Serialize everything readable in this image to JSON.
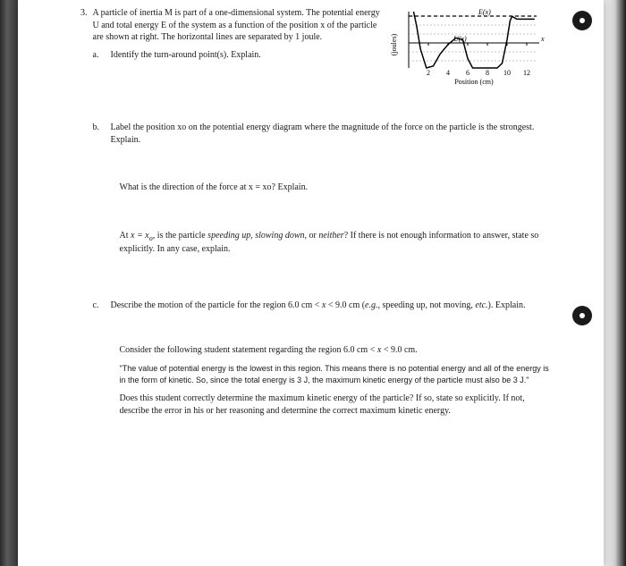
{
  "question": {
    "number": "3.",
    "intro": "A particle of inertia M is part of a one-dimensional system. The potential energy U and total energy E of the system as a function of the position x of the particle are shown at right. The horizontal lines are separated by 1 joule.",
    "parts": {
      "a": {
        "letter": "a.",
        "text": "Identify the turn-around point(s). Explain."
      },
      "b": {
        "letter": "b.",
        "text": "Label the position xo on the potential energy diagram where the magnitude of the force on the particle is the strongest. Explain.",
        "sub1": "What is the direction of the force at x = xo? Explain.",
        "sub2": "At x = xo, is the particle speeding up, slowing down, or neither? If there is not enough information to answer, state so explicitly. In any case, explain."
      },
      "c": {
        "letter": "c.",
        "text": "Describe the motion of the particle for the region 6.0 cm < x < 9.0 cm (e.g., speeding up, not moving, etc.). Explain.",
        "sub1": "Consider the following student statement regarding the region 6.0 cm < x < 9.0 cm.",
        "quote": "\"The value of potential energy is the lowest in this region. This means there is no potential energy and all of the energy is in the form of kinetic. So, since the total energy is 3 J, the maximum kinetic energy of the particle must also be 3 J.\"",
        "sub2": "Does this student correctly determine the maximum kinetic energy of the particle? If so, state so explicitly. If not, describe the error in his or her reasoning and determine the correct maximum kinetic energy."
      }
    }
  },
  "graph": {
    "ylabel": "(joules)",
    "xlabel": "Position (cm)",
    "e_label": "E(x)",
    "u_label": "U(x)",
    "x_axis_label": "x",
    "xticks": [
      "2",
      "4",
      "6",
      "8",
      "10",
      "12"
    ],
    "xlim": [
      0,
      13
    ],
    "ylim": [
      -2,
      4
    ],
    "e_value": 3,
    "u_curve": [
      [
        0.5,
        4
      ],
      [
        0.8,
        2.5
      ],
      [
        1.2,
        0
      ],
      [
        1.8,
        -2
      ],
      [
        2.5,
        -1.8
      ],
      [
        3.2,
        -0.5
      ],
      [
        4,
        0.5
      ],
      [
        4.8,
        1.2
      ],
      [
        5.5,
        1
      ],
      [
        6,
        -1
      ],
      [
        6.5,
        -2
      ],
      [
        8,
        -2
      ],
      [
        9,
        -2
      ],
      [
        9.5,
        -1.5
      ],
      [
        10,
        1
      ],
      [
        10.3,
        3
      ],
      [
        10.5,
        3.5
      ],
      [
        11,
        3.2
      ],
      [
        12,
        3.2
      ],
      [
        12.8,
        3.2
      ]
    ],
    "gridline_color": "#888888",
    "curve_color": "#000000",
    "background": "#ffffff"
  },
  "buttons": {
    "top": {
      "icon": "circle-dot"
    },
    "mid": {
      "icon": "circle-dot"
    }
  }
}
